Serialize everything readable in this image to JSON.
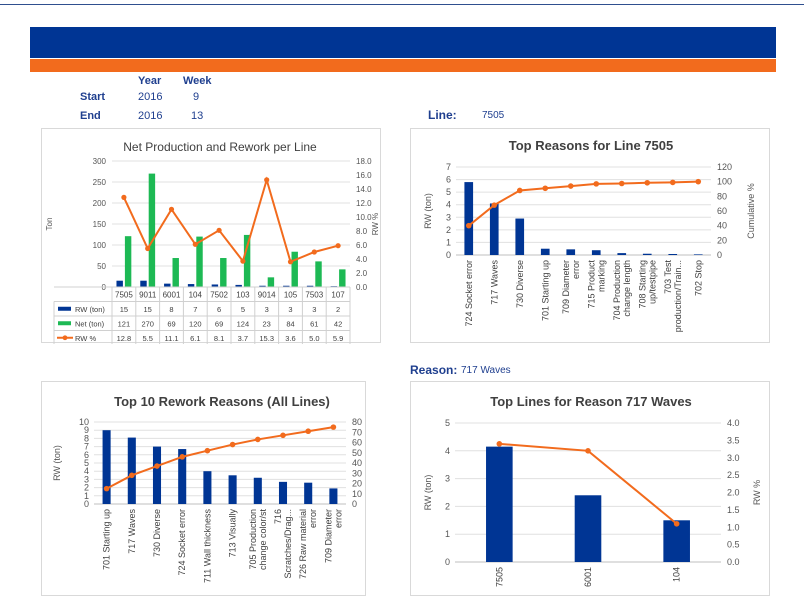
{
  "filters": {
    "year_label": "Year",
    "week_label": "Week",
    "start_label": "Start",
    "end_label": "End",
    "start_year": "2016",
    "start_week": "9",
    "end_year": "2016",
    "end_week": "13",
    "line_label": "Line:",
    "line_value": "7505",
    "reason_label": "Reason:",
    "reason_value": "717 Waves"
  },
  "colors": {
    "navy": "#003594",
    "green": "#1db954",
    "orange": "#f26b1d",
    "grid": "#e0e0e0"
  },
  "chart_data": [
    {
      "id": "net-production",
      "type": "bar",
      "title": "Net Production and Rework per Line",
      "ylabel": "Ton",
      "y2label": "RW %",
      "ylim": [
        0,
        300
      ],
      "y2lim": [
        0,
        18
      ],
      "yticks": [
        "0",
        "50",
        "100",
        "150",
        "200",
        "250",
        "300"
      ],
      "y2ticks": [
        "0.0",
        "2.0",
        "4.0",
        "6.0",
        "8.0",
        "10.0",
        "12.0",
        "14.0",
        "16.0",
        "18.0"
      ],
      "categories": [
        "7505",
        "9011",
        "6001",
        "104",
        "7502",
        "103",
        "9014",
        "105",
        "7503",
        "107"
      ],
      "series": [
        {
          "name": "RW (ton)",
          "values": [
            15,
            15,
            8,
            7,
            6,
            5,
            3,
            3,
            3,
            2
          ],
          "labels": [
            "15",
            "15",
            "8",
            "7",
            "6",
            "5",
            "3",
            "3",
            "3",
            "2"
          ]
        },
        {
          "name": "Net (ton)",
          "values": [
            121,
            270,
            69,
            120,
            69,
            124,
            23,
            84,
            61,
            42
          ],
          "labels": [
            "121",
            "270",
            "69",
            "120",
            "69",
            "124",
            "23",
            "84",
            "61",
            "42"
          ]
        },
        {
          "name": "RW %",
          "values": [
            12.8,
            5.5,
            11.1,
            6.1,
            8.1,
            3.7,
            15.3,
            3.6,
            5.0,
            5.9
          ],
          "labels": [
            "12.8",
            "5.5",
            "11.1",
            "6.1",
            "8.1",
            "3.7",
            "15.3",
            "3.6",
            "5.0",
            "5.9"
          ]
        }
      ],
      "grid": true,
      "legend": "table-below"
    },
    {
      "id": "top-reasons-line",
      "type": "bar",
      "title": "Top Reasons for Line 7505",
      "ylabel": "RW (ton)",
      "y2label": "Cumulative %",
      "ylim": [
        0,
        7
      ],
      "y2lim": [
        0,
        120
      ],
      "yticks": [
        "0",
        "1",
        "2",
        "3",
        "4",
        "5",
        "6",
        "7"
      ],
      "y2ticks": [
        "0",
        "20",
        "40",
        "60",
        "80",
        "100",
        "120"
      ],
      "categories": [
        [
          "724 Socket error"
        ],
        [
          "717 Waves"
        ],
        [
          "730 Diverse"
        ],
        [
          "701 Starting up"
        ],
        [
          "709 Diameter",
          "error"
        ],
        [
          "715 Product",
          "marking"
        ],
        [
          "704 Production",
          "change length"
        ],
        [
          "708 Starting",
          "up/testpipe"
        ],
        [
          "703 Test",
          "production/Train..."
        ],
        [
          "702 Stop"
        ]
      ],
      "series": [
        {
          "name": "RW (ton)",
          "values": [
            5.8,
            4.1,
            2.9,
            0.5,
            0.45,
            0.38,
            0.15,
            0.1,
            0.08,
            0.05
          ]
        },
        {
          "name": "Cumulative %",
          "values": [
            40,
            68,
            88,
            91,
            94,
            97,
            97.5,
            98.5,
            99,
            100
          ]
        }
      ],
      "grid": true
    },
    {
      "id": "top10-rework",
      "type": "bar",
      "title": "Top 10 Rework Reasons (All Lines)",
      "ylabel": "RW (ton)",
      "y2label": "Cumulative %",
      "ylim": [
        0,
        10
      ],
      "y2lim": [
        0,
        80
      ],
      "yticks": [
        "0",
        "1",
        "2",
        "3",
        "4",
        "5",
        "6",
        "7",
        "8",
        "9",
        "10"
      ],
      "y2ticks": [
        "0",
        "10",
        "20",
        "30",
        "40",
        "50",
        "60",
        "70",
        "80"
      ],
      "categories": [
        [
          "701 Starting up"
        ],
        [
          "717 Waves"
        ],
        [
          "730 Diverse"
        ],
        [
          "724 Socket error"
        ],
        [
          "711 Wall thickness"
        ],
        [
          "713 Visually"
        ],
        [
          "705 Production",
          "change color/st"
        ],
        [
          "716",
          "Scratches/Drag..."
        ],
        [
          "726 Raw material",
          "error"
        ],
        [
          "709 Diameter",
          "error"
        ]
      ],
      "series": [
        {
          "name": "RW (ton)",
          "values": [
            9.0,
            8.1,
            7.0,
            6.7,
            4.0,
            3.5,
            3.2,
            2.7,
            2.6,
            1.9
          ]
        },
        {
          "name": "Cumulative %",
          "values": [
            15,
            28,
            37,
            46,
            52,
            58,
            63,
            67,
            71,
            75
          ]
        }
      ],
      "grid": true
    },
    {
      "id": "top-lines-reason",
      "type": "bar",
      "title": "Top Lines for Reason 717 Waves",
      "ylabel": "RW (ton)",
      "y2label": "RW %",
      "ylim": [
        0,
        5
      ],
      "y2lim": [
        0,
        4
      ],
      "yticks": [
        "0",
        "1",
        "2",
        "3",
        "4",
        "5"
      ],
      "y2ticks": [
        "0.0",
        "0.5",
        "1.0",
        "1.5",
        "2.0",
        "2.5",
        "3.0",
        "3.5",
        "4.0"
      ],
      "categories": [
        [
          "7505"
        ],
        [
          "6001"
        ],
        [
          "104"
        ]
      ],
      "series": [
        {
          "name": "RW (ton)",
          "values": [
            4.15,
            2.4,
            1.5
          ]
        },
        {
          "name": "RW %",
          "values": [
            3.4,
            3.2,
            1.1
          ]
        }
      ],
      "grid": true
    }
  ]
}
